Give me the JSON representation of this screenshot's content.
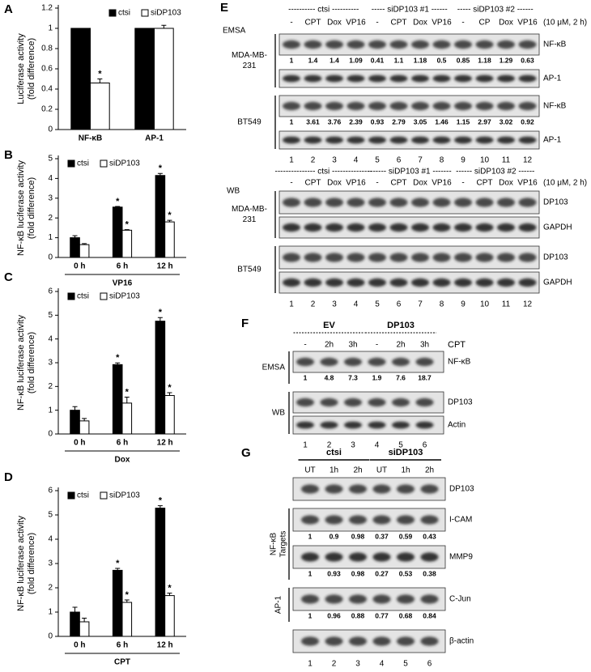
{
  "chart_data": [
    {
      "type": "bar",
      "panel": "A",
      "ylabel": [
        "Luciferase activity",
        "(fold difference)"
      ],
      "categories": [
        "NF-κB",
        "AP-1"
      ],
      "series": [
        {
          "name": "ctsi",
          "color": "#000000",
          "values": [
            1,
            1
          ],
          "errors": [
            0,
            0
          ],
          "significance": [
            null,
            null
          ]
        },
        {
          "name": "siDP103",
          "color": "#ffffff",
          "values": [
            0.46,
            1.0
          ],
          "errors": [
            0.04,
            0.03
          ],
          "significance": [
            "*",
            null
          ]
        }
      ],
      "ylim": [
        0,
        1.2
      ],
      "yticks": [
        0,
        0.2,
        0.4,
        0.6,
        0.8,
        1,
        1.2
      ],
      "legend": "top-right"
    },
    {
      "type": "bar",
      "panel": "B",
      "ylabel": [
        "NF-κB luciferase activity",
        "(fold difference)"
      ],
      "categories": [
        "0 h",
        "6 h",
        "12 h"
      ],
      "xlabel": "VP16",
      "series": [
        {
          "name": "ctsi",
          "color": "#000000",
          "values": [
            1.0,
            2.55,
            4.15
          ],
          "errors": [
            0.1,
            0.03,
            0.1
          ],
          "significance": [
            null,
            "*",
            "*"
          ]
        },
        {
          "name": "siDP103",
          "color": "#ffffff",
          "values": [
            0.65,
            1.38,
            1.8
          ],
          "errors": [
            0.05,
            0.03,
            0.08
          ],
          "significance": [
            null,
            "*",
            "*"
          ]
        }
      ],
      "ylim": [
        0,
        5
      ],
      "yticks": [
        0,
        1,
        2,
        3,
        4,
        5
      ],
      "legend": "top-left"
    },
    {
      "type": "bar",
      "panel": "C",
      "ylabel": [
        "NF-κB luciferase activity",
        "(fold difference)"
      ],
      "categories": [
        "0 h",
        "6 h",
        "12 h"
      ],
      "xlabel": "Dox",
      "series": [
        {
          "name": "ctsi",
          "color": "#000000",
          "values": [
            1.0,
            2.92,
            4.75
          ],
          "errors": [
            0.15,
            0.07,
            0.15
          ],
          "significance": [
            null,
            "*",
            "*"
          ]
        },
        {
          "name": "siDP103",
          "color": "#ffffff",
          "values": [
            0.55,
            1.3,
            1.62
          ],
          "errors": [
            0.1,
            0.25,
            0.12
          ],
          "significance": [
            null,
            "*",
            "*"
          ]
        }
      ],
      "ylim": [
        0,
        6
      ],
      "yticks": [
        0,
        1,
        2,
        3,
        4,
        5,
        6
      ],
      "legend": "top-left"
    },
    {
      "type": "bar",
      "panel": "D",
      "ylabel": [
        "NF-κB luciferase activity",
        "(fold difference)"
      ],
      "categories": [
        "0 h",
        "6 h",
        "12 h"
      ],
      "xlabel": "CPT",
      "series": [
        {
          "name": "ctsi",
          "color": "#000000",
          "values": [
            1.0,
            2.72,
            5.28
          ],
          "errors": [
            0.2,
            0.08,
            0.1
          ],
          "significance": [
            null,
            "*",
            "*"
          ]
        },
        {
          "name": "siDP103",
          "color": "#ffffff",
          "values": [
            0.6,
            1.4,
            1.68
          ],
          "errors": [
            0.15,
            0.1,
            0.1
          ],
          "significance": [
            null,
            "*",
            "*"
          ]
        }
      ],
      "ylim": [
        0,
        6
      ],
      "yticks": [
        0,
        1,
        2,
        3,
        4,
        5,
        6
      ],
      "legend": "top-left"
    }
  ],
  "panel_e": {
    "label": "E",
    "emsa": {
      "method": "EMSA",
      "groups": [
        "---------- ctsi ----------",
        "----- siDP103 #1 ------",
        "----- siDP103 #2 ------"
      ],
      "lanes": [
        "-",
        "CPT",
        "Dox",
        "VP16",
        "-",
        "CPT",
        "Dox",
        "VP16",
        "-",
        "CP",
        "Dox",
        "VP16"
      ],
      "treatment": "(10 μM, 2 h)",
      "sections": [
        {
          "name": [
            "MDA-MB-",
            "231"
          ],
          "bands": [
            {
              "name": "NF-κB",
              "quant": [
                1,
                1.4,
                1.4,
                1.09,
                0.41,
                1.1,
                1.18,
                0.5,
                0.85,
                1.18,
                1.29,
                0.63
              ]
            },
            {
              "name": "AP-1"
            }
          ]
        },
        {
          "name": [
            "BT549"
          ],
          "bands": [
            {
              "name": "NF-κB",
              "quant": [
                1,
                3.61,
                3.76,
                2.39,
                0.93,
                2.79,
                3.05,
                1.46,
                1.15,
                2.97,
                3.02,
                0.92
              ]
            },
            {
              "name": "AP-1"
            }
          ]
        }
      ],
      "lane_numbers": [
        1,
        2,
        3,
        4,
        5,
        6,
        7,
        8,
        9,
        10,
        11,
        12
      ]
    },
    "wb": {
      "method": "WB",
      "groups": [
        "--------------- ctsi ---------------",
        "------- siDP103 #1 -------",
        "------ siDP103 #2 ------"
      ],
      "lanes": [
        "-",
        "CPT",
        "Dox",
        "VP16",
        "-",
        "CPT",
        "Dox",
        "VP16",
        "-",
        "CPT",
        "Dox",
        "VP16"
      ],
      "treatment": "(10 μM, 2 h)",
      "sections": [
        {
          "name": [
            "MDA-MB-",
            "231"
          ],
          "bands": [
            {
              "name": "DP103"
            },
            {
              "name": "GAPDH"
            }
          ]
        },
        {
          "name": [
            "BT549"
          ],
          "bands": [
            {
              "name": "DP103"
            },
            {
              "name": "GAPDH"
            }
          ]
        }
      ],
      "lane_numbers": [
        1,
        2,
        3,
        4,
        5,
        6,
        7,
        8,
        9,
        10,
        11,
        12
      ]
    }
  },
  "panel_f": {
    "label": "F",
    "groups": [
      "EV",
      "DP103"
    ],
    "lanes": [
      "-",
      "2h",
      "3h",
      "-",
      "2h",
      "3h"
    ],
    "treatment": "CPT",
    "sections": [
      {
        "name": [
          "EMSA"
        ],
        "bands": [
          {
            "name": "NF-κB",
            "quant": [
              1,
              4.8,
              7.3,
              1.9,
              7.6,
              18.7
            ]
          }
        ]
      },
      {
        "name": [
          "WB"
        ],
        "bands": [
          {
            "name": "DP103"
          },
          {
            "name": "Actin"
          }
        ]
      }
    ],
    "lane_numbers": [
      1,
      2,
      3,
      4,
      5,
      6
    ]
  },
  "panel_g": {
    "label": "G",
    "groups": [
      "ctsi",
      "siDP103"
    ],
    "lanes": [
      "UT",
      "1h",
      "2h",
      "UT",
      "1h",
      "2h"
    ],
    "sections": [
      {
        "bands": [
          {
            "name": "DP103"
          }
        ]
      },
      {
        "name": [
          "NF-κB",
          "Targets"
        ],
        "bands": [
          {
            "name": "I-CAM",
            "quant": [
              1,
              0.9,
              0.98,
              0.37,
              0.59,
              0.43
            ]
          },
          {
            "name": "MMP9",
            "quant": [
              1,
              0.93,
              0.98,
              0.27,
              0.53,
              0.38
            ]
          }
        ]
      },
      {
        "name": [
          "AP-1"
        ],
        "bands": [
          {
            "name": "C-Jun",
            "quant": [
              1,
              0.96,
              0.88,
              0.77,
              0.68,
              0.84
            ]
          }
        ]
      },
      {
        "bands": [
          {
            "name": "β-actin"
          }
        ]
      }
    ],
    "lane_numbers": [
      1,
      2,
      3,
      4,
      5,
      6
    ]
  }
}
